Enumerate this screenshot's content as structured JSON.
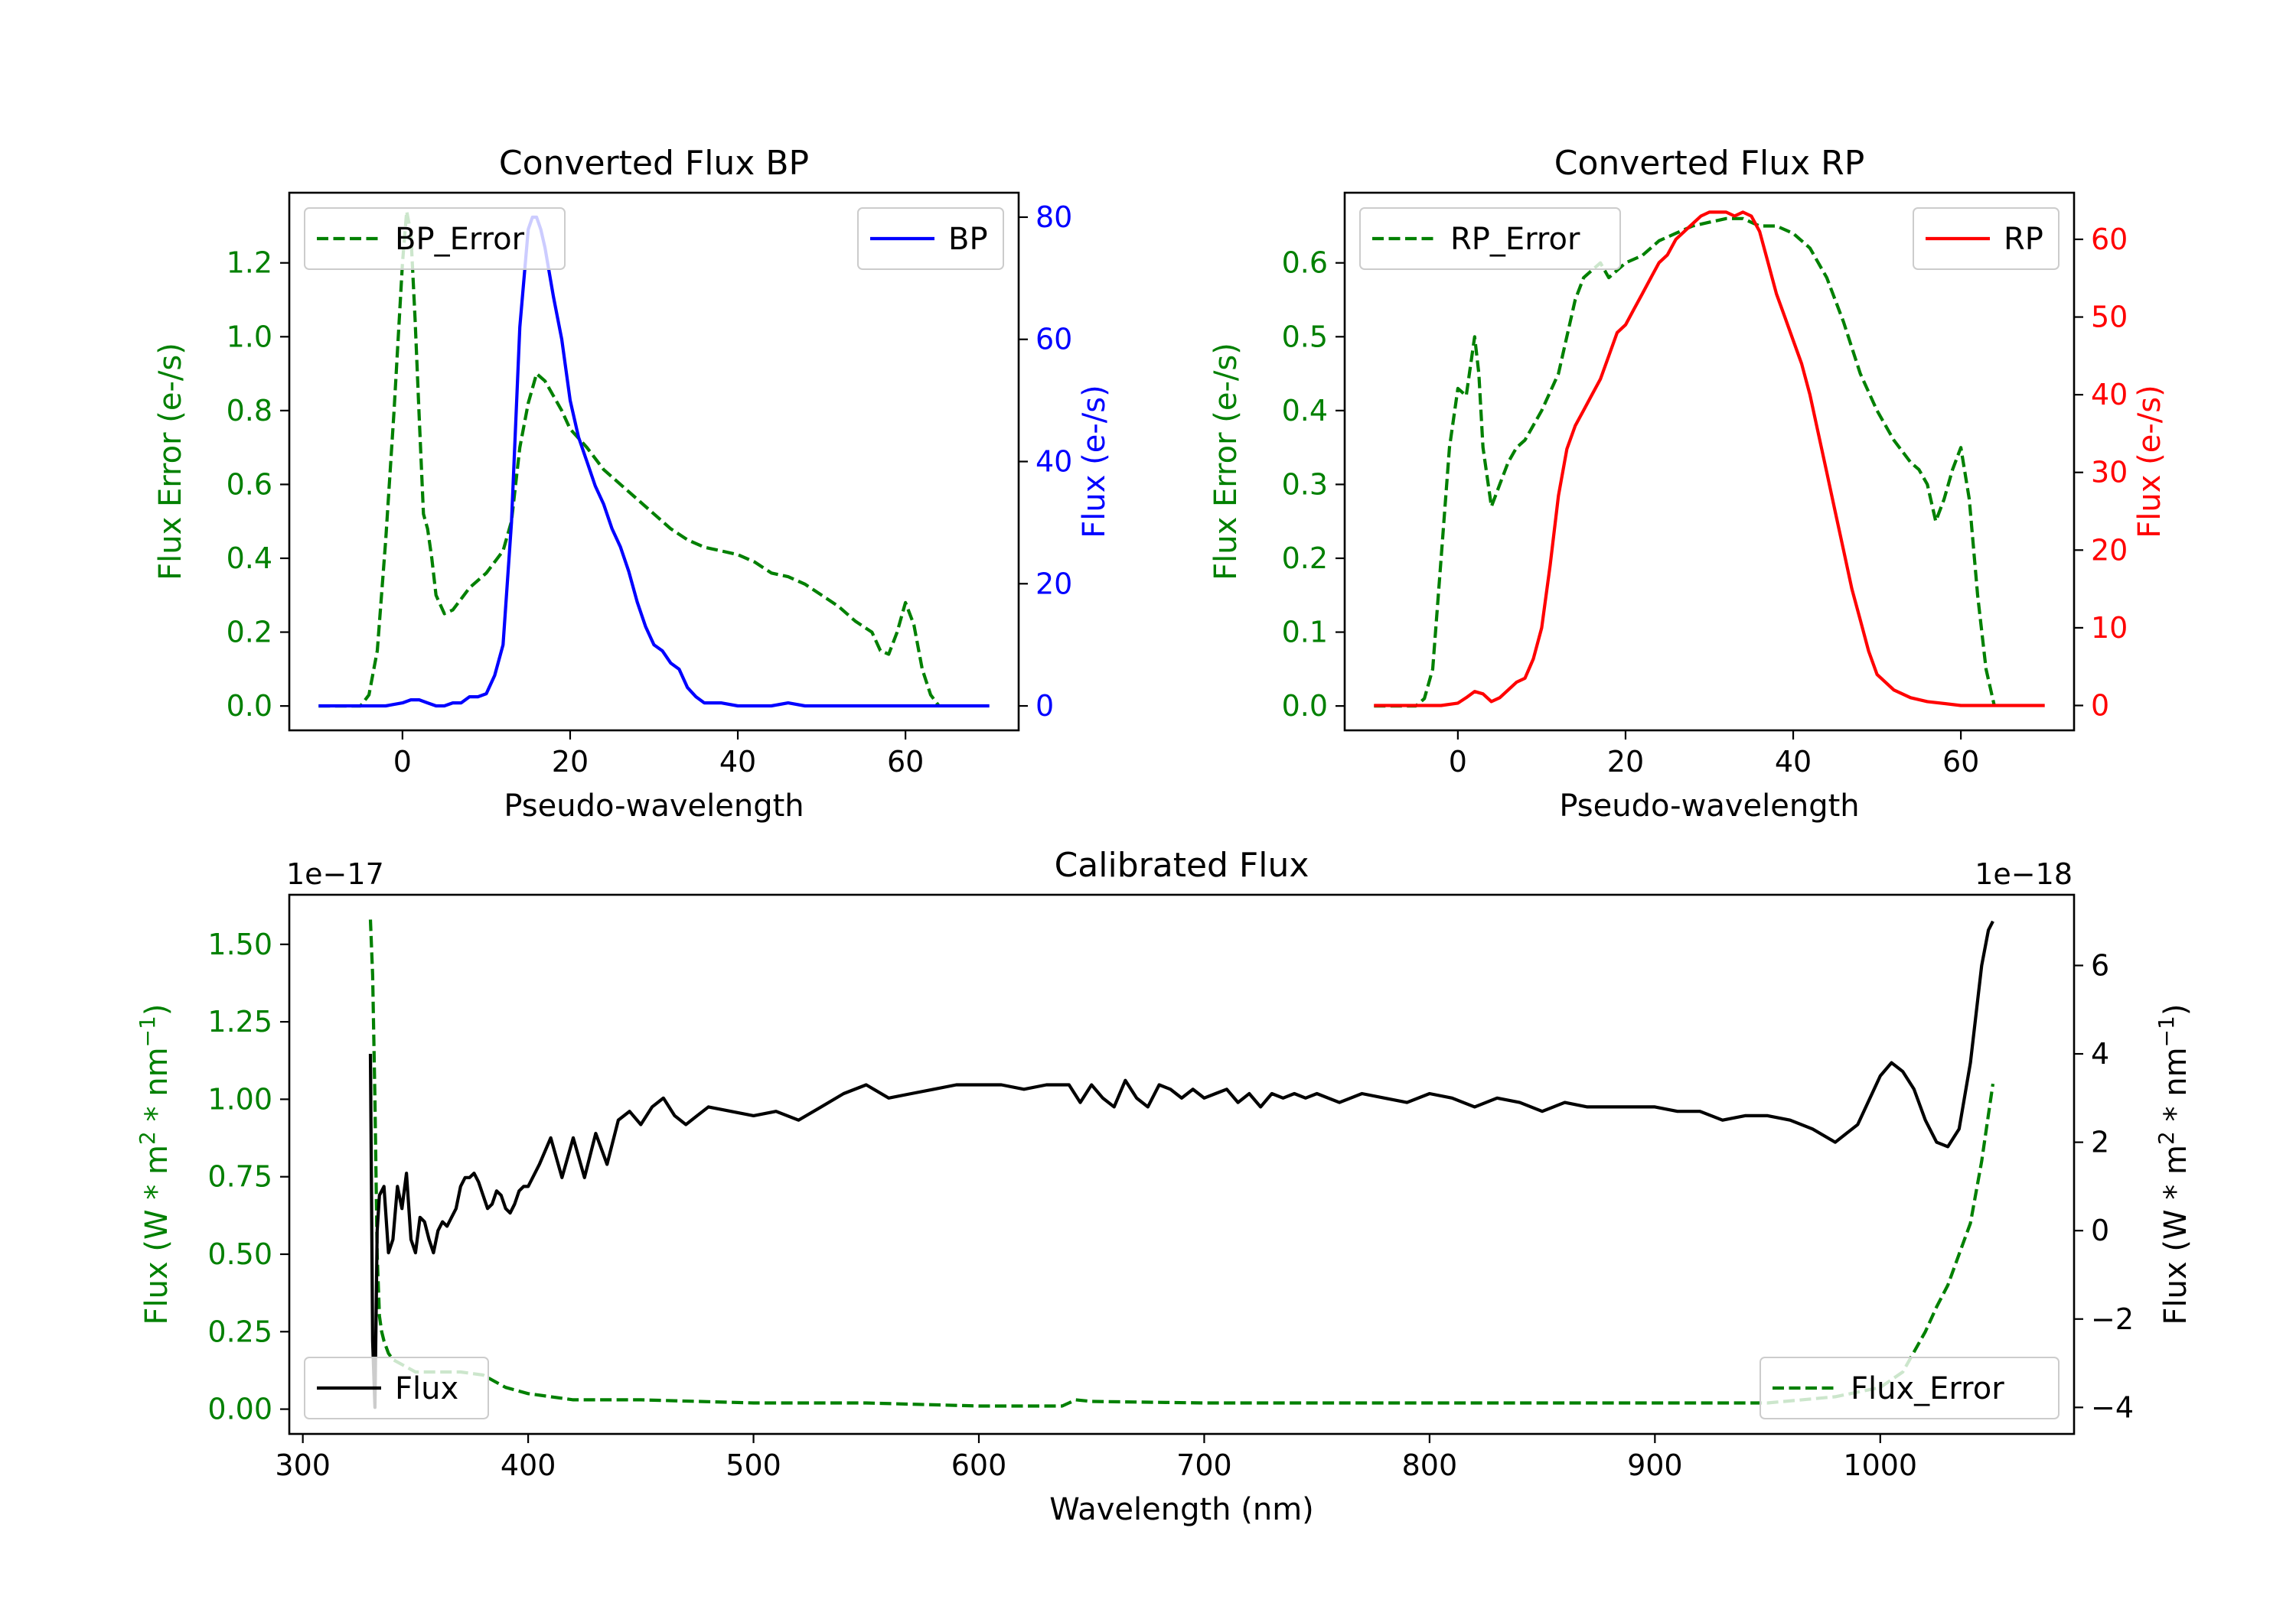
{
  "colors": {
    "bp": "#0000ff",
    "rp": "#ff0000",
    "error": "#008000",
    "flux": "#000000"
  },
  "chart_data": [
    {
      "type": "line",
      "title": "Converted Flux BP",
      "xlabel": "Pseudo-wavelength",
      "ylabel_left": "Flux Error (e-/s)",
      "ylabel_right": "Flux (e-/s)",
      "xlim": [
        -13.5,
        73.5
      ],
      "xticks": [
        0,
        20,
        40,
        60
      ],
      "ylim_left": [
        -0.066,
        1.39
      ],
      "yticks_left": [
        0.0,
        0.2,
        0.4,
        0.6,
        0.8,
        1.0,
        1.2
      ],
      "ylim_right": [
        -4,
        84
      ],
      "yticks_right": [
        0,
        20,
        40,
        60,
        80
      ],
      "legend_left": {
        "label": "BP_Error",
        "position": "upper left"
      },
      "legend_right": {
        "label": "BP",
        "position": "upper right"
      },
      "series": [
        {
          "name": "BP_Error",
          "axis": "left",
          "style": "dashed",
          "x": [
            -10,
            -5,
            -4,
            -3,
            -2,
            -1,
            0,
            0.5,
            1,
            1.5,
            2,
            2.5,
            3,
            3.5,
            4,
            5,
            6,
            7,
            8,
            10,
            12,
            13,
            14,
            15,
            16,
            17,
            18,
            19,
            20,
            22,
            24,
            26,
            28,
            30,
            32,
            34,
            36,
            38,
            40,
            42,
            44,
            46,
            48,
            50,
            52,
            54,
            56,
            57,
            58,
            59,
            60,
            61,
            62,
            63,
            64
          ],
          "y": [
            0.0,
            0.0,
            0.03,
            0.15,
            0.45,
            0.8,
            1.2,
            1.34,
            1.28,
            1.05,
            0.78,
            0.52,
            0.48,
            0.4,
            0.3,
            0.25,
            0.26,
            0.29,
            0.32,
            0.36,
            0.42,
            0.5,
            0.7,
            0.82,
            0.9,
            0.88,
            0.84,
            0.8,
            0.75,
            0.7,
            0.64,
            0.6,
            0.56,
            0.52,
            0.48,
            0.45,
            0.43,
            0.42,
            0.41,
            0.39,
            0.36,
            0.35,
            0.33,
            0.3,
            0.27,
            0.23,
            0.2,
            0.15,
            0.14,
            0.2,
            0.28,
            0.22,
            0.1,
            0.03,
            0.0
          ]
        },
        {
          "name": "BP",
          "axis": "right",
          "style": "solid",
          "x": [
            -10,
            -5,
            -2,
            0,
            1,
            2,
            3,
            4,
            5,
            6,
            7,
            8,
            9,
            10,
            11,
            12,
            13,
            14,
            15,
            15.5,
            16,
            16.5,
            17,
            18,
            19,
            20,
            21,
            22,
            23,
            24,
            25,
            26,
            27,
            28,
            29,
            30,
            31,
            32,
            33,
            34,
            35,
            36,
            38,
            40,
            42,
            44,
            46,
            48,
            50,
            55,
            60,
            65,
            70
          ],
          "y": [
            0,
            0,
            0,
            0.5,
            1,
            1,
            0.5,
            0,
            0,
            0.5,
            0.5,
            1.5,
            1.5,
            2,
            5,
            10,
            30,
            62,
            78,
            80,
            80,
            78,
            75,
            67,
            60,
            50,
            44,
            40,
            36,
            33,
            29,
            26,
            22,
            17,
            13,
            10,
            9,
            7,
            6,
            3,
            1.5,
            0.5,
            0.5,
            0,
            0,
            0,
            0.5,
            0,
            0,
            0,
            0,
            0,
            0
          ]
        }
      ]
    },
    {
      "type": "line",
      "title": "Converted Flux RP",
      "xlabel": "Pseudo-wavelength",
      "ylabel_left": "Flux Error (e-/s)",
      "ylabel_right": "Flux (e-/s)",
      "xlim": [
        -13.5,
        73.5
      ],
      "xticks": [
        0,
        20,
        40,
        60
      ],
      "ylim_left": [
        -0.033,
        0.695
      ],
      "yticks_left": [
        0.0,
        0.1,
        0.2,
        0.3,
        0.4,
        0.5,
        0.6
      ],
      "ylim_right": [
        -3.2,
        66
      ],
      "yticks_right": [
        0,
        10,
        20,
        30,
        40,
        50,
        60
      ],
      "legend_left": {
        "label": "RP_Error",
        "position": "upper left"
      },
      "legend_right": {
        "label": "RP",
        "position": "upper right"
      },
      "series": [
        {
          "name": "RP_Error",
          "axis": "left",
          "style": "dashed",
          "x": [
            -10,
            -5,
            -4,
            -3,
            -2,
            -1,
            0,
            1,
            2,
            2.5,
            3,
            4,
            5,
            6,
            7,
            8,
            9,
            10,
            12,
            14,
            15,
            16,
            17,
            18,
            19,
            20,
            22,
            24,
            26,
            28,
            30,
            32,
            34,
            36,
            38,
            40,
            42,
            44,
            46,
            48,
            50,
            52,
            54,
            55,
            56,
            57,
            58,
            59,
            60,
            61,
            62,
            63,
            64
          ],
          "y": [
            0.0,
            0.0,
            0.01,
            0.05,
            0.2,
            0.35,
            0.43,
            0.42,
            0.5,
            0.45,
            0.35,
            0.27,
            0.3,
            0.33,
            0.35,
            0.36,
            0.38,
            0.4,
            0.45,
            0.55,
            0.58,
            0.59,
            0.6,
            0.58,
            0.59,
            0.6,
            0.61,
            0.63,
            0.64,
            0.65,
            0.655,
            0.66,
            0.66,
            0.65,
            0.65,
            0.64,
            0.62,
            0.58,
            0.52,
            0.45,
            0.4,
            0.36,
            0.33,
            0.32,
            0.3,
            0.25,
            0.28,
            0.32,
            0.35,
            0.28,
            0.15,
            0.05,
            0.0
          ]
        },
        {
          "name": "RP",
          "axis": "right",
          "style": "solid",
          "x": [
            -10,
            -5,
            -2,
            0,
            1,
            2,
            3,
            4,
            5,
            6,
            7,
            8,
            9,
            10,
            11,
            12,
            13,
            14,
            15,
            16,
            17,
            18,
            19,
            20,
            21,
            22,
            23,
            24,
            25,
            26,
            27,
            28,
            29,
            30,
            31,
            32,
            33,
            34,
            35,
            36,
            37,
            38,
            39,
            40,
            41,
            42,
            43,
            44,
            45,
            46,
            47,
            48,
            49,
            50,
            52,
            54,
            56,
            60,
            65,
            70
          ],
          "y": [
            0,
            0,
            0,
            0.3,
            1,
            1.8,
            1.5,
            0.5,
            1,
            2,
            3,
            3.5,
            6,
            10,
            18,
            27,
            33,
            36,
            38,
            40,
            42,
            45,
            48,
            49,
            51,
            53,
            55,
            57,
            58,
            60,
            61,
            62,
            63,
            63.5,
            63.5,
            63.5,
            63,
            63.5,
            63,
            61,
            57,
            53,
            50,
            47,
            44,
            40,
            35,
            30,
            25,
            20,
            15,
            11,
            7,
            4,
            2,
            1,
            0.5,
            0,
            0,
            0
          ]
        }
      ]
    },
    {
      "type": "line",
      "title": "Calibrated Flux",
      "xlabel": "Wavelength (nm)",
      "ylabel_left": "Flux (W * m$^2$ * nm$^{-1}$)",
      "ylabel_right": "Flux (W * m$^2$ * nm$^{-1}$)",
      "xlim": [
        294,
        1086
      ],
      "xticks": [
        300,
        400,
        500,
        600,
        700,
        800,
        900,
        1000
      ],
      "ylim_left": [
        -0.08,
        1.66
      ],
      "yticks_left": [
        0.0,
        0.25,
        0.5,
        0.75,
        1.0,
        1.25,
        1.5
      ],
      "ylim_right": [
        -4.6,
        7.6
      ],
      "yticks_right": [
        -4,
        -2,
        0,
        2,
        4,
        6
      ],
      "offset_left": "1e−17",
      "offset_right": "1e−18",
      "legend_left": {
        "label": "Flux",
        "position": "lower left"
      },
      "legend_right": {
        "label": "Flux_Error",
        "position": "lower right"
      },
      "series": [
        {
          "name": "Flux_Error",
          "axis": "left",
          "style": "dashed",
          "x": [
            330,
            331,
            332,
            333,
            334,
            335,
            336,
            338,
            340,
            345,
            350,
            360,
            370,
            380,
            390,
            400,
            420,
            450,
            500,
            550,
            600,
            637,
            643,
            650,
            700,
            750,
            800,
            850,
            900,
            950,
            980,
            1000,
            1010,
            1020,
            1025,
            1030,
            1035,
            1040,
            1045,
            1048,
            1050
          ],
          "y": [
            1.58,
            1.4,
            1.0,
            0.5,
            0.3,
            0.25,
            0.22,
            0.18,
            0.16,
            0.14,
            0.12,
            0.12,
            0.12,
            0.11,
            0.07,
            0.05,
            0.03,
            0.03,
            0.02,
            0.02,
            0.01,
            0.01,
            0.03,
            0.025,
            0.02,
            0.02,
            0.02,
            0.02,
            0.02,
            0.02,
            0.04,
            0.07,
            0.12,
            0.25,
            0.33,
            0.4,
            0.5,
            0.6,
            0.8,
            0.95,
            1.05
          ]
        },
        {
          "name": "Flux",
          "axis": "right",
          "style": "solid",
          "x": [
            330,
            331,
            332,
            333,
            334,
            336,
            338,
            340,
            342,
            344,
            346,
            348,
            350,
            352,
            354,
            356,
            358,
            360,
            362,
            364,
            366,
            368,
            370,
            372,
            374,
            376,
            378,
            380,
            382,
            384,
            386,
            388,
            390,
            392,
            394,
            396,
            398,
            400,
            405,
            410,
            415,
            420,
            425,
            430,
            435,
            440,
            445,
            450,
            455,
            460,
            465,
            470,
            475,
            480,
            490,
            500,
            510,
            520,
            530,
            540,
            550,
            560,
            570,
            580,
            590,
            600,
            610,
            620,
            630,
            640,
            645,
            650,
            655,
            660,
            665,
            670,
            675,
            680,
            685,
            690,
            695,
            700,
            705,
            710,
            715,
            720,
            725,
            730,
            735,
            740,
            745,
            750,
            760,
            770,
            780,
            790,
            800,
            810,
            820,
            830,
            840,
            850,
            860,
            870,
            880,
            890,
            900,
            910,
            920,
            930,
            940,
            950,
            960,
            970,
            980,
            990,
            1000,
            1005,
            1010,
            1015,
            1020,
            1025,
            1030,
            1035,
            1040,
            1045,
            1048,
            1050
          ],
          "y": [
            4.0,
            -2.5,
            -4.0,
            0.0,
            0.8,
            1.0,
            -0.5,
            -0.2,
            1.0,
            0.5,
            1.3,
            -0.2,
            -0.5,
            0.3,
            0.2,
            -0.2,
            -0.5,
            0.0,
            0.2,
            0.1,
            0.3,
            0.5,
            1.0,
            1.2,
            1.2,
            1.3,
            1.1,
            0.8,
            0.5,
            0.6,
            0.9,
            0.8,
            0.5,
            0.4,
            0.6,
            0.9,
            1.0,
            1.0,
            1.5,
            2.1,
            1.2,
            2.1,
            1.2,
            2.2,
            1.5,
            2.5,
            2.7,
            2.4,
            2.8,
            3.0,
            2.6,
            2.4,
            2.6,
            2.8,
            2.7,
            2.6,
            2.7,
            2.5,
            2.8,
            3.1,
            3.3,
            3.0,
            3.1,
            3.2,
            3.3,
            3.3,
            3.3,
            3.2,
            3.3,
            3.3,
            2.9,
            3.3,
            3.0,
            2.8,
            3.4,
            3.0,
            2.8,
            3.3,
            3.2,
            3.0,
            3.2,
            3.0,
            3.1,
            3.2,
            2.9,
            3.1,
            2.8,
            3.1,
            3.0,
            3.1,
            3.0,
            3.1,
            2.9,
            3.1,
            3.0,
            2.9,
            3.1,
            3.0,
            2.8,
            3.0,
            2.9,
            2.7,
            2.9,
            2.8,
            2.8,
            2.8,
            2.8,
            2.7,
            2.7,
            2.5,
            2.6,
            2.6,
            2.5,
            2.3,
            2.0,
            2.4,
            3.5,
            3.8,
            3.6,
            3.2,
            2.5,
            2.0,
            1.9,
            2.3,
            3.8,
            6.0,
            6.8,
            7.0
          ]
        }
      ]
    }
  ]
}
